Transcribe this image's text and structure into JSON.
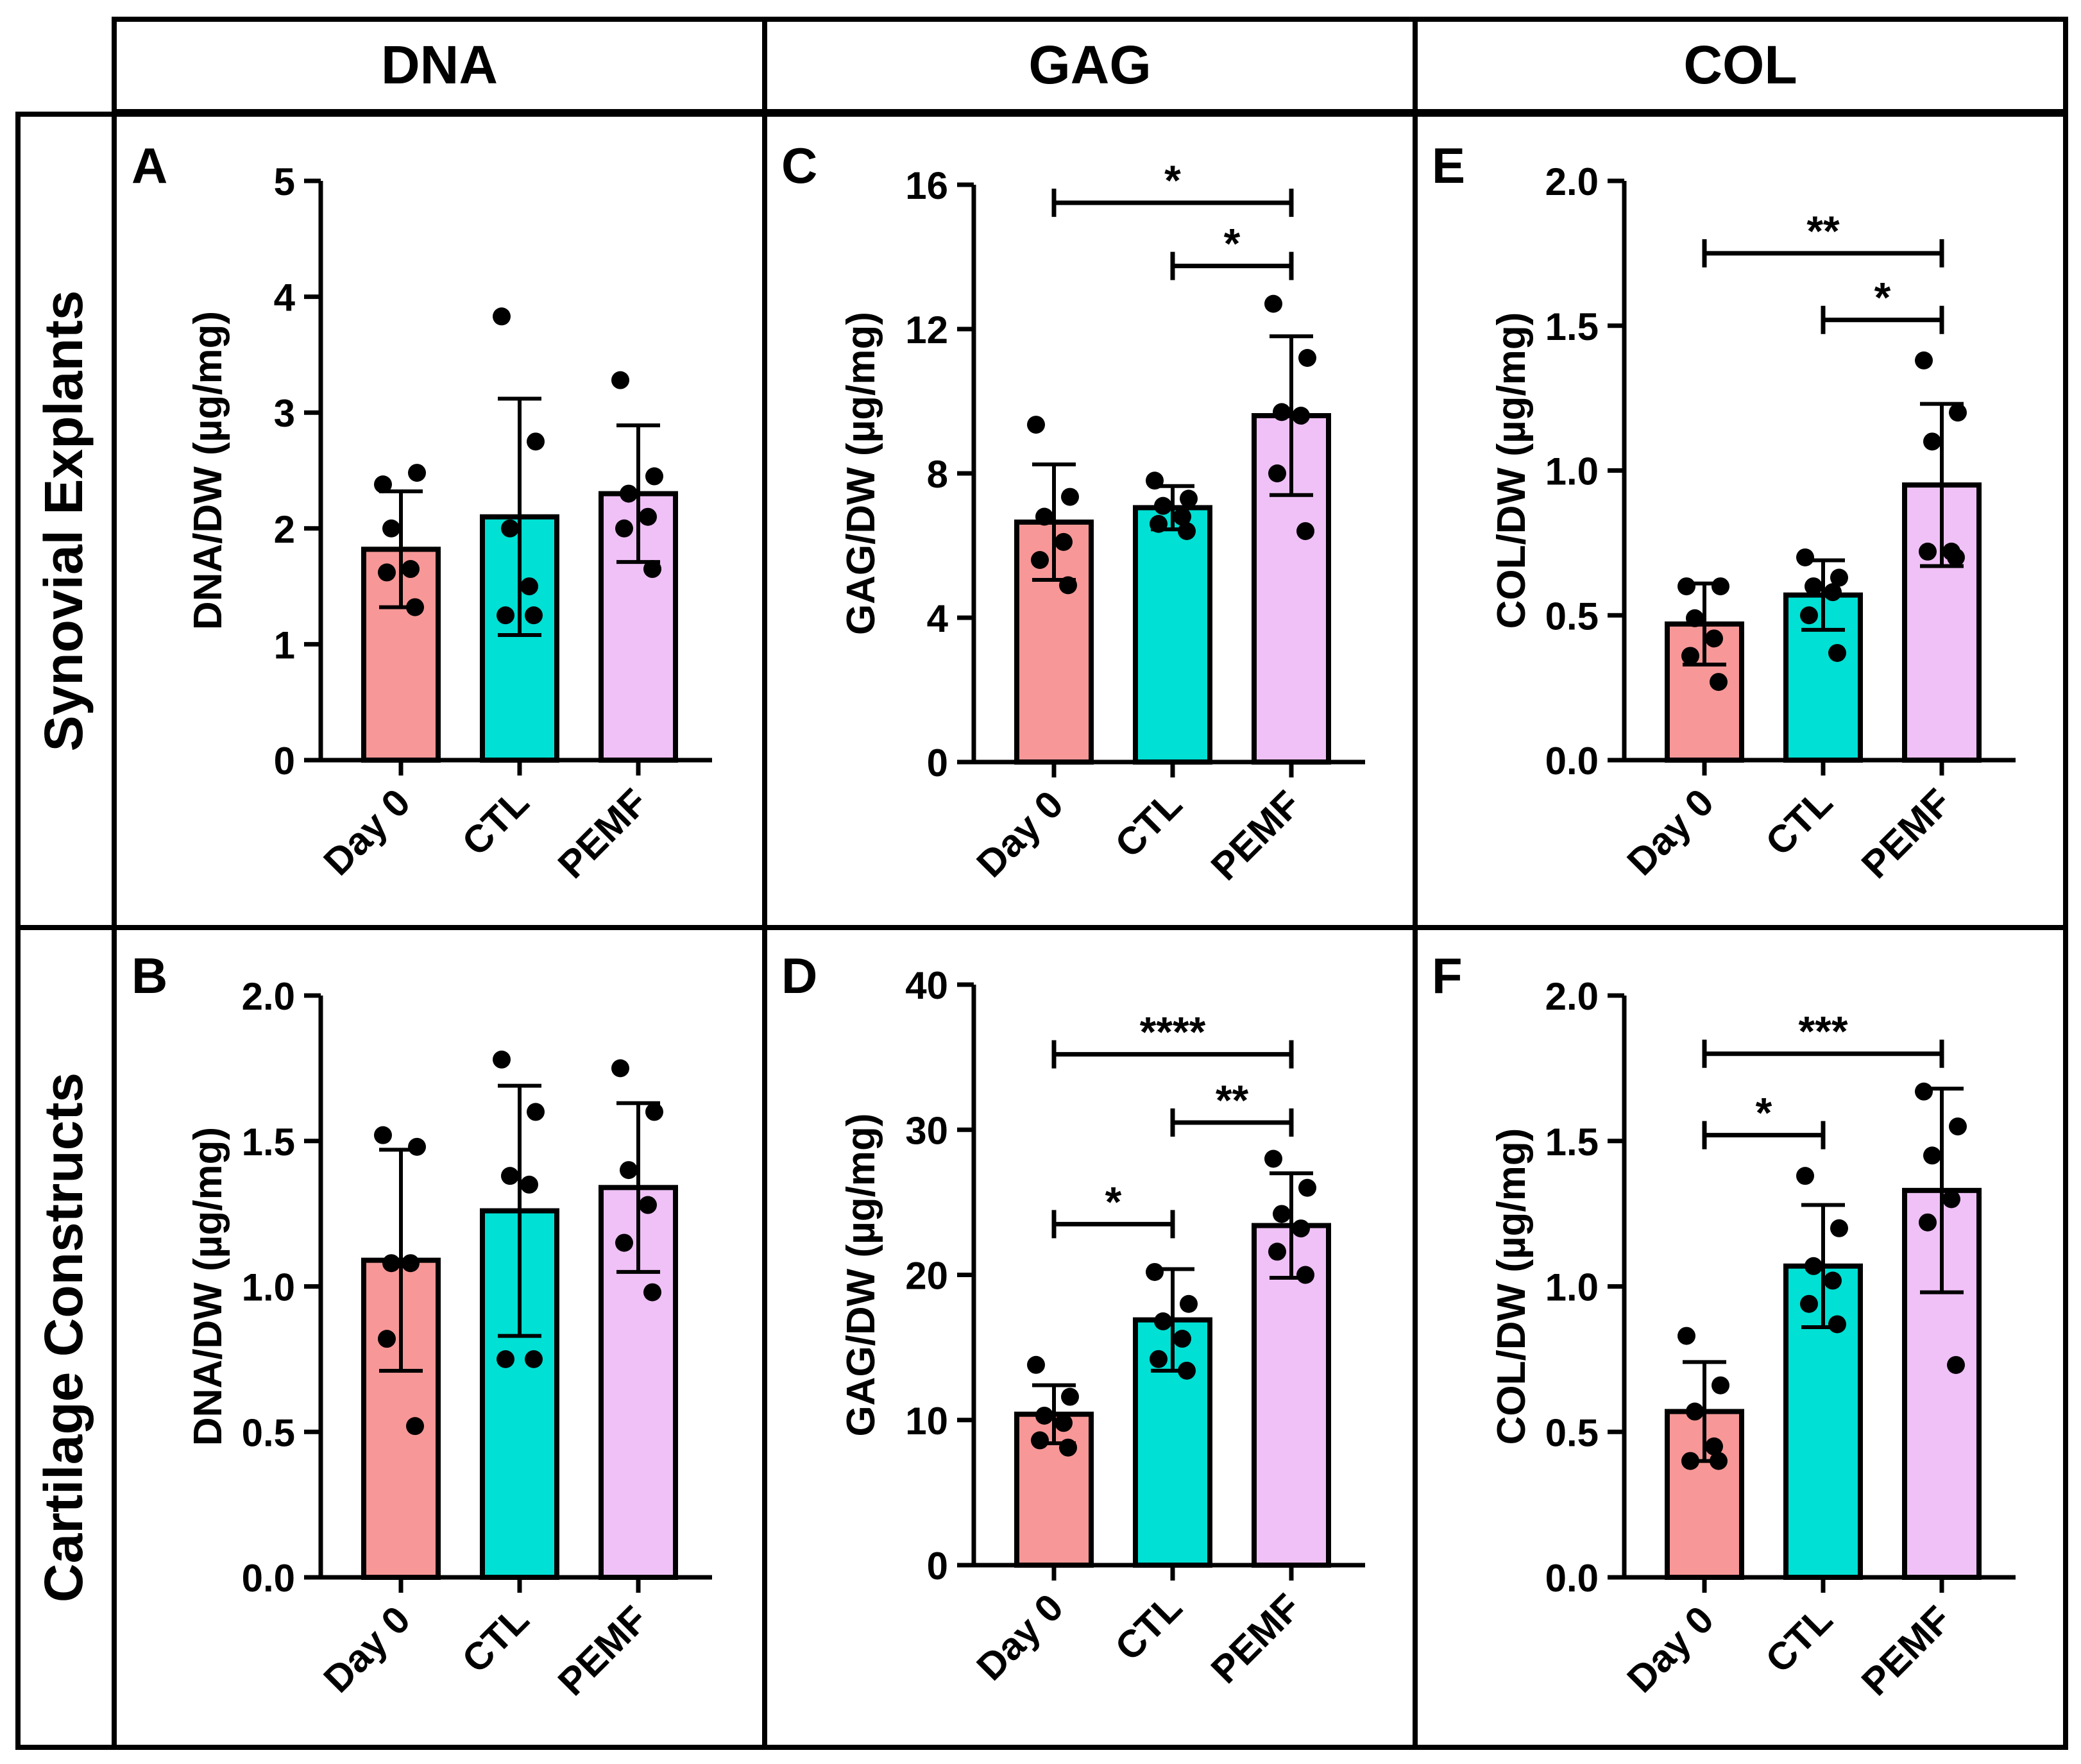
{
  "header": {
    "columns": [
      "DNA",
      "GAG",
      "COL"
    ],
    "rows": [
      "Synovial Explants",
      "Cartilage Constructs"
    ]
  },
  "colors": {
    "Day 0": "#f79797",
    "CTL": "#00e0d4",
    "PEMF": "#efc1f6"
  },
  "chart_data": [
    {
      "type": "bar",
      "panel": "A",
      "categories": [
        "Day 0",
        "CTL",
        "PEMF"
      ],
      "means": [
        1.82,
        2.1,
        2.3
      ],
      "sd": [
        0.5,
        1.02,
        0.59
      ],
      "points": [
        [
          2.38,
          2.48,
          2.0,
          1.65,
          1.62,
          1.32
        ],
        [
          3.83,
          2.75,
          2.0,
          1.5,
          1.25,
          1.25
        ],
        [
          3.28,
          2.45,
          2.3,
          2.1,
          2.0,
          1.65
        ]
      ],
      "ylabel": "DNA/DW (µg/mg)",
      "ylim": [
        0,
        5
      ],
      "yticks": [
        0,
        1,
        2,
        3,
        4,
        5
      ],
      "yticklabels": [
        "0",
        "1",
        "2",
        "3",
        "4",
        "5"
      ],
      "significance": []
    },
    {
      "type": "bar",
      "panel": "B",
      "categories": [
        "Day 0",
        "CTL",
        "PEMF"
      ],
      "means": [
        1.09,
        1.26,
        1.34
      ],
      "sd": [
        0.38,
        0.43,
        0.29
      ],
      "points": [
        [
          1.52,
          1.48,
          1.08,
          1.08,
          0.82,
          0.52
        ],
        [
          1.78,
          1.6,
          1.38,
          1.35,
          0.75,
          0.75
        ],
        [
          1.75,
          1.6,
          1.4,
          1.28,
          1.15,
          0.98
        ]
      ],
      "ylabel": "DNA/DW (µg/mg)",
      "ylim": [
        0,
        2
      ],
      "yticks": [
        0,
        0.5,
        1,
        1.5,
        2
      ],
      "yticklabels": [
        "0.0",
        "0.5",
        "1.0",
        "1.5",
        "2.0"
      ],
      "significance": []
    },
    {
      "type": "bar",
      "panel": "C",
      "categories": [
        "Day 0",
        "CTL",
        "PEMF"
      ],
      "means": [
        6.65,
        7.05,
        9.6
      ],
      "sd": [
        1.6,
        0.6,
        2.2
      ],
      "points": [
        [
          9.35,
          7.35,
          6.8,
          6.1,
          5.6,
          4.9
        ],
        [
          7.8,
          7.3,
          7.1,
          6.8,
          6.6,
          6.4
        ],
        [
          12.7,
          11.2,
          9.7,
          9.6,
          8.0,
          6.4
        ]
      ],
      "ylabel": "GAG/DW (µg/mg)",
      "ylim": [
        0,
        16
      ],
      "yticks": [
        0,
        4,
        8,
        12,
        16
      ],
      "yticklabels": [
        "0",
        "4",
        "8",
        "12",
        "16"
      ],
      "significance": [
        {
          "from": 0,
          "to": 2,
          "y": 15.5,
          "label": "*"
        },
        {
          "from": 1,
          "to": 2,
          "y": 13.75,
          "label": "*"
        }
      ]
    },
    {
      "type": "bar",
      "panel": "D",
      "categories": [
        "Day 0",
        "CTL",
        "PEMF"
      ],
      "means": [
        10.4,
        16.9,
        23.4
      ],
      "sd": [
        2.0,
        3.5,
        3.6
      ],
      "points": [
        [
          13.8,
          11.6,
          10.3,
          9.8,
          8.6,
          8.1
        ],
        [
          20.2,
          18.0,
          16.8,
          15.6,
          14.2,
          13.4
        ],
        [
          28.0,
          26.0,
          24.2,
          23.2,
          21.6,
          20.0
        ]
      ],
      "ylabel": "GAG/DW (µg/mg)",
      "ylim": [
        0,
        40
      ],
      "yticks": [
        0,
        10,
        20,
        30,
        40
      ],
      "yticklabels": [
        "0",
        "10",
        "20",
        "30",
        "40"
      ],
      "significance": [
        {
          "from": 0,
          "to": 2,
          "y": 35.2,
          "label": "****"
        },
        {
          "from": 1,
          "to": 2,
          "y": 30.5,
          "label": "**"
        },
        {
          "from": 0,
          "to": 1,
          "y": 23.5,
          "label": "*"
        }
      ]
    },
    {
      "type": "bar",
      "panel": "E",
      "categories": [
        "Day 0",
        "CTL",
        "PEMF"
      ],
      "means": [
        0.47,
        0.57,
        0.95
      ],
      "sd": [
        0.14,
        0.12,
        0.28
      ],
      "points": [
        [
          0.6,
          0.6,
          0.49,
          0.42,
          0.36,
          0.27
        ],
        [
          0.7,
          0.63,
          0.6,
          0.58,
          0.5,
          0.37
        ],
        [
          1.38,
          1.2,
          1.1,
          0.72,
          0.72,
          0.7
        ]
      ],
      "ylabel": "COL/DW (µg/mg)",
      "ylim": [
        0,
        2
      ],
      "yticks": [
        0,
        0.5,
        1,
        1.5,
        2
      ],
      "yticklabels": [
        "0.0",
        "0.5",
        "1.0",
        "1.5",
        "2.0"
      ],
      "significance": [
        {
          "from": 0,
          "to": 2,
          "y": 1.75,
          "label": "**"
        },
        {
          "from": 1,
          "to": 2,
          "y": 1.52,
          "label": "*"
        }
      ]
    },
    {
      "type": "bar",
      "panel": "F",
      "categories": [
        "Day 0",
        "CTL",
        "PEMF"
      ],
      "means": [
        0.57,
        1.07,
        1.33
      ],
      "sd": [
        0.17,
        0.21,
        0.35
      ],
      "points": [
        [
          0.83,
          0.66,
          0.57,
          0.45,
          0.4,
          0.4
        ],
        [
          1.38,
          1.2,
          1.07,
          1.02,
          0.94,
          0.87
        ],
        [
          1.67,
          1.55,
          1.45,
          1.3,
          1.22,
          0.73
        ]
      ],
      "ylabel": "COL/DW (µg/mg)",
      "ylim": [
        0,
        2
      ],
      "yticks": [
        0,
        0.5,
        1,
        1.5,
        2
      ],
      "yticklabels": [
        "0.0",
        "0.5",
        "1.0",
        "1.5",
        "2.0"
      ],
      "significance": [
        {
          "from": 0,
          "to": 2,
          "y": 1.8,
          "label": "***"
        },
        {
          "from": 0,
          "to": 1,
          "y": 1.52,
          "label": "*"
        }
      ]
    }
  ]
}
